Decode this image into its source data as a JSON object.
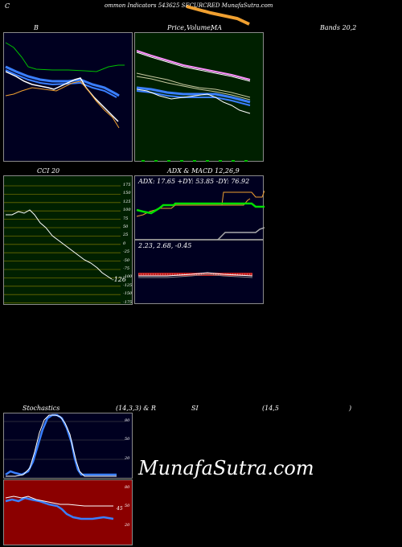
{
  "header": {
    "c": "C",
    "title": "ommon  Indicators 543625 SECURCRED MunafaSutra.com"
  },
  "panels": {
    "bollinger": {
      "title": "B"
    },
    "price_ma": {
      "title_a": "Price,",
      "title_b": "Volume,",
      "title_c": "MA",
      "title_d": "Bands 20,2"
    },
    "cci": {
      "title": "CCI 20",
      "ticks": [
        "175",
        "150",
        "125",
        "100",
        "75",
        "50",
        "25",
        "0",
        "-25",
        "-50",
        "-75",
        "-100",
        "-125",
        "-150",
        "-175"
      ],
      "value_label": "-126"
    },
    "adx_macd": {
      "title": "ADX  & MACD 12,26,9",
      "adx_readout": "ADX: 17.65  +DY: 53.85 -DY: 76.92",
      "macd_readout": "2.23,  2.68,  -0.45"
    },
    "stoch": {
      "title_a": "Stochastics",
      "title_b": "(14,3,3) & R",
      "title_c": "SI",
      "title_d": "(14,5",
      "title_e": ")",
      "ticks": [
        "80",
        "50",
        "20"
      ]
    },
    "rsi": {
      "ticks": [
        "80",
        "50",
        "20"
      ],
      "value_label": "45"
    }
  },
  "watermark": "MunafaSutra.com",
  "colors": {
    "bg": "#000000",
    "panel_dark": "#000020",
    "panel_green": "#002000",
    "rsi_red": "#8b0000",
    "grid_olive": "#6b6b00",
    "blue": "#3a7fff",
    "orange": "#f0a030",
    "green_line": "#00c000"
  }
}
